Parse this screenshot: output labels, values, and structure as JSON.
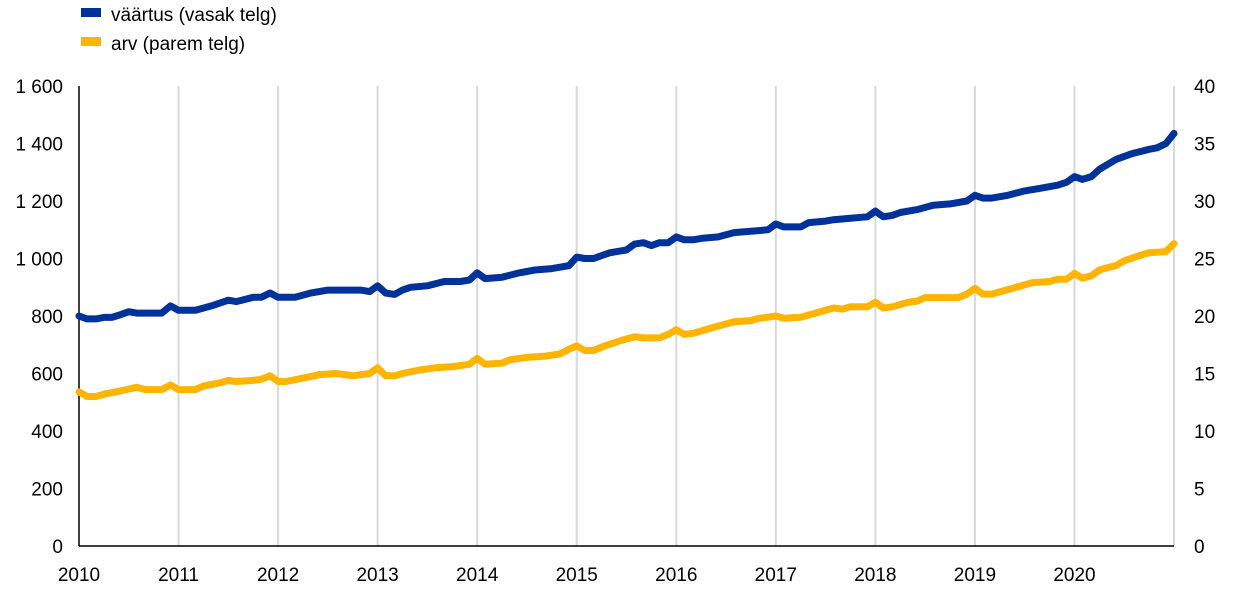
{
  "chart_data": {
    "type": "line",
    "title": "",
    "xlabel": "",
    "ylabel_left": "",
    "ylabel_right": "",
    "x_ticks": [
      "2010",
      "2011",
      "2012",
      "2013",
      "2014",
      "2015",
      "2016",
      "2017",
      "2018",
      "2019",
      "2020"
    ],
    "x_range": [
      2010,
      2021
    ],
    "y_left": {
      "range": [
        0,
        1600
      ],
      "ticks": [
        "0",
        "200",
        "400",
        "600",
        "800",
        "1 000",
        "1 200",
        "1 400",
        "1 600"
      ],
      "tick_values": [
        0,
        200,
        400,
        600,
        800,
        1000,
        1200,
        1400,
        1600
      ]
    },
    "y_right": {
      "range": [
        0,
        40
      ],
      "ticks": [
        "0",
        "5",
        "10",
        "15",
        "20",
        "25",
        "30",
        "35",
        "40"
      ],
      "tick_values": [
        0,
        5,
        10,
        15,
        20,
        25,
        30,
        35,
        40
      ]
    },
    "grid": "vertical",
    "legend_position": "top-left",
    "series": [
      {
        "name": "väärtus (vasak telg)",
        "axis": "left",
        "color": "#003299",
        "points": [
          [
            2010.0,
            800
          ],
          [
            2010.08,
            790
          ],
          [
            2010.17,
            790
          ],
          [
            2010.25,
            795
          ],
          [
            2010.33,
            795
          ],
          [
            2010.42,
            805
          ],
          [
            2010.5,
            815
          ],
          [
            2010.58,
            810
          ],
          [
            2010.67,
            810
          ],
          [
            2010.75,
            810
          ],
          [
            2010.83,
            810
          ],
          [
            2010.92,
            835
          ],
          [
            2011.0,
            820
          ],
          [
            2011.17,
            820
          ],
          [
            2011.33,
            835
          ],
          [
            2011.5,
            855
          ],
          [
            2011.58,
            850
          ],
          [
            2011.75,
            865
          ],
          [
            2011.83,
            865
          ],
          [
            2011.92,
            880
          ],
          [
            2012.0,
            865
          ],
          [
            2012.17,
            865
          ],
          [
            2012.33,
            880
          ],
          [
            2012.5,
            890
          ],
          [
            2012.67,
            890
          ],
          [
            2012.83,
            890
          ],
          [
            2012.92,
            885
          ],
          [
            2013.0,
            905
          ],
          [
            2013.08,
            880
          ],
          [
            2013.17,
            875
          ],
          [
            2013.25,
            890
          ],
          [
            2013.33,
            900
          ],
          [
            2013.5,
            905
          ],
          [
            2013.67,
            920
          ],
          [
            2013.83,
            920
          ],
          [
            2013.92,
            925
          ],
          [
            2014.0,
            950
          ],
          [
            2014.08,
            930
          ],
          [
            2014.25,
            935
          ],
          [
            2014.42,
            950
          ],
          [
            2014.58,
            960
          ],
          [
            2014.75,
            965
          ],
          [
            2014.92,
            975
          ],
          [
            2015.0,
            1005
          ],
          [
            2015.08,
            1000
          ],
          [
            2015.17,
            1000
          ],
          [
            2015.25,
            1010
          ],
          [
            2015.33,
            1020
          ],
          [
            2015.5,
            1030
          ],
          [
            2015.58,
            1050
          ],
          [
            2015.67,
            1055
          ],
          [
            2015.75,
            1045
          ],
          [
            2015.83,
            1055
          ],
          [
            2015.92,
            1055
          ],
          [
            2016.0,
            1075
          ],
          [
            2016.08,
            1065
          ],
          [
            2016.17,
            1065
          ],
          [
            2016.25,
            1070
          ],
          [
            2016.42,
            1075
          ],
          [
            2016.58,
            1090
          ],
          [
            2016.75,
            1095
          ],
          [
            2016.92,
            1100
          ],
          [
            2017.0,
            1120
          ],
          [
            2017.08,
            1110
          ],
          [
            2017.25,
            1110
          ],
          [
            2017.33,
            1125
          ],
          [
            2017.5,
            1130
          ],
          [
            2017.58,
            1135
          ],
          [
            2017.75,
            1140
          ],
          [
            2017.92,
            1145
          ],
          [
            2018.0,
            1165
          ],
          [
            2018.08,
            1145
          ],
          [
            2018.17,
            1150
          ],
          [
            2018.25,
            1160
          ],
          [
            2018.42,
            1170
          ],
          [
            2018.58,
            1185
          ],
          [
            2018.75,
            1190
          ],
          [
            2018.92,
            1200
          ],
          [
            2019.0,
            1220
          ],
          [
            2019.08,
            1210
          ],
          [
            2019.17,
            1210
          ],
          [
            2019.33,
            1220
          ],
          [
            2019.5,
            1235
          ],
          [
            2019.67,
            1245
          ],
          [
            2019.83,
            1255
          ],
          [
            2019.92,
            1265
          ],
          [
            2020.0,
            1285
          ],
          [
            2020.08,
            1275
          ],
          [
            2020.17,
            1285
          ],
          [
            2020.25,
            1310
          ],
          [
            2020.42,
            1345
          ],
          [
            2020.58,
            1365
          ],
          [
            2020.75,
            1380
          ],
          [
            2020.83,
            1385
          ],
          [
            2020.92,
            1400
          ],
          [
            2021.0,
            1435
          ]
        ]
      },
      {
        "name": "arv (parem telg)",
        "axis": "right",
        "color": "#ffb400",
        "points": [
          [
            2010.0,
            13.4
          ],
          [
            2010.08,
            13.0
          ],
          [
            2010.17,
            13.0
          ],
          [
            2010.25,
            13.2
          ],
          [
            2010.42,
            13.5
          ],
          [
            2010.58,
            13.8
          ],
          [
            2010.67,
            13.6
          ],
          [
            2010.83,
            13.6
          ],
          [
            2010.92,
            14.0
          ],
          [
            2011.0,
            13.6
          ],
          [
            2011.17,
            13.6
          ],
          [
            2011.25,
            13.9
          ],
          [
            2011.42,
            14.2
          ],
          [
            2011.5,
            14.4
          ],
          [
            2011.58,
            14.3
          ],
          [
            2011.75,
            14.4
          ],
          [
            2011.83,
            14.5
          ],
          [
            2011.92,
            14.8
          ],
          [
            2012.0,
            14.3
          ],
          [
            2012.08,
            14.3
          ],
          [
            2012.25,
            14.6
          ],
          [
            2012.42,
            14.9
          ],
          [
            2012.58,
            15.0
          ],
          [
            2012.67,
            14.9
          ],
          [
            2012.75,
            14.8
          ],
          [
            2012.92,
            15.0
          ],
          [
            2013.0,
            15.5
          ],
          [
            2013.08,
            14.8
          ],
          [
            2013.17,
            14.8
          ],
          [
            2013.25,
            15.0
          ],
          [
            2013.42,
            15.3
          ],
          [
            2013.58,
            15.5
          ],
          [
            2013.75,
            15.6
          ],
          [
            2013.92,
            15.8
          ],
          [
            2014.0,
            16.3
          ],
          [
            2014.08,
            15.8
          ],
          [
            2014.25,
            15.9
          ],
          [
            2014.33,
            16.2
          ],
          [
            2014.5,
            16.4
          ],
          [
            2014.67,
            16.5
          ],
          [
            2014.83,
            16.7
          ],
          [
            2014.92,
            17.1
          ],
          [
            2015.0,
            17.4
          ],
          [
            2015.08,
            17.0
          ],
          [
            2015.17,
            17.0
          ],
          [
            2015.25,
            17.3
          ],
          [
            2015.42,
            17.8
          ],
          [
            2015.58,
            18.2
          ],
          [
            2015.67,
            18.1
          ],
          [
            2015.83,
            18.1
          ],
          [
            2015.92,
            18.4
          ],
          [
            2016.0,
            18.8
          ],
          [
            2016.08,
            18.4
          ],
          [
            2016.17,
            18.5
          ],
          [
            2016.33,
            18.9
          ],
          [
            2016.5,
            19.3
          ],
          [
            2016.58,
            19.5
          ],
          [
            2016.75,
            19.6
          ],
          [
            2016.83,
            19.8
          ],
          [
            2016.92,
            19.9
          ],
          [
            2017.0,
            20.0
          ],
          [
            2017.08,
            19.8
          ],
          [
            2017.25,
            19.9
          ],
          [
            2017.42,
            20.3
          ],
          [
            2017.58,
            20.7
          ],
          [
            2017.67,
            20.6
          ],
          [
            2017.75,
            20.8
          ],
          [
            2017.92,
            20.8
          ],
          [
            2018.0,
            21.2
          ],
          [
            2018.08,
            20.7
          ],
          [
            2018.17,
            20.8
          ],
          [
            2018.33,
            21.2
          ],
          [
            2018.42,
            21.3
          ],
          [
            2018.5,
            21.6
          ],
          [
            2018.67,
            21.6
          ],
          [
            2018.83,
            21.6
          ],
          [
            2018.92,
            21.9
          ],
          [
            2019.0,
            22.4
          ],
          [
            2019.08,
            21.9
          ],
          [
            2019.17,
            21.9
          ],
          [
            2019.33,
            22.3
          ],
          [
            2019.5,
            22.7
          ],
          [
            2019.58,
            22.9
          ],
          [
            2019.75,
            23.0
          ],
          [
            2019.83,
            23.2
          ],
          [
            2019.92,
            23.2
          ],
          [
            2020.0,
            23.7
          ],
          [
            2020.08,
            23.3
          ],
          [
            2020.17,
            23.5
          ],
          [
            2020.25,
            24.0
          ],
          [
            2020.42,
            24.4
          ],
          [
            2020.5,
            24.8
          ],
          [
            2020.67,
            25.3
          ],
          [
            2020.75,
            25.5
          ],
          [
            2020.92,
            25.6
          ],
          [
            2021.0,
            26.3
          ]
        ]
      }
    ]
  }
}
